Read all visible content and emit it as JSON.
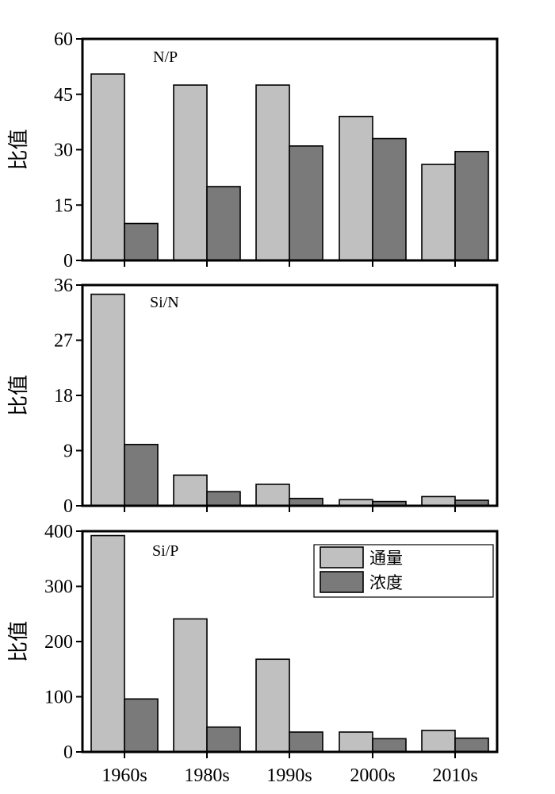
{
  "chart_data": [
    {
      "type": "bar",
      "title": "N/P",
      "ylabel": "比值",
      "categories": [
        "1960s",
        "1980s",
        "1990s",
        "2000s",
        "2010s"
      ],
      "ylim": [
        0,
        60
      ],
      "yticks": [
        "0",
        "15",
        "30",
        "45",
        "60"
      ],
      "series": [
        {
          "name": "通量",
          "color": "#c0c0c0",
          "values": [
            50.5,
            47.5,
            47.5,
            39,
            26
          ]
        },
        {
          "name": "浓度",
          "color": "#7a7a7a",
          "values": [
            10,
            20,
            31,
            33,
            29.5
          ]
        }
      ]
    },
    {
      "type": "bar",
      "title": "Si/N",
      "ylabel": "比值",
      "categories": [
        "1960s",
        "1980s",
        "1990s",
        "2000s",
        "2010s"
      ],
      "ylim": [
        0,
        36
      ],
      "yticks": [
        "0",
        "9",
        "18",
        "27",
        "36"
      ],
      "series": [
        {
          "name": "通量",
          "color": "#c0c0c0",
          "values": [
            34.5,
            5,
            3.5,
            1,
            1.5
          ]
        },
        {
          "name": "浓度",
          "color": "#7a7a7a",
          "values": [
            10,
            2.3,
            1.2,
            0.7,
            0.9
          ]
        }
      ]
    },
    {
      "type": "bar",
      "title": "Si/P",
      "ylabel": "比值",
      "categories": [
        "1960s",
        "1980s",
        "1990s",
        "2000s",
        "2010s"
      ],
      "ylim": [
        0,
        400
      ],
      "yticks": [
        "0",
        "100",
        "200",
        "300",
        "400"
      ],
      "series": [
        {
          "name": "通量",
          "color": "#c0c0c0",
          "values": [
            392,
            241,
            168,
            36,
            39
          ]
        },
        {
          "name": "浓度",
          "color": "#7a7a7a",
          "values": [
            96,
            45,
            36,
            24,
            25
          ]
        }
      ],
      "legend": {
        "position": "top-right",
        "entries": [
          "通量",
          "浓度"
        ]
      }
    }
  ],
  "xticks": [
    "1960s",
    "1980s",
    "1990s",
    "2000s",
    "2010s"
  ]
}
